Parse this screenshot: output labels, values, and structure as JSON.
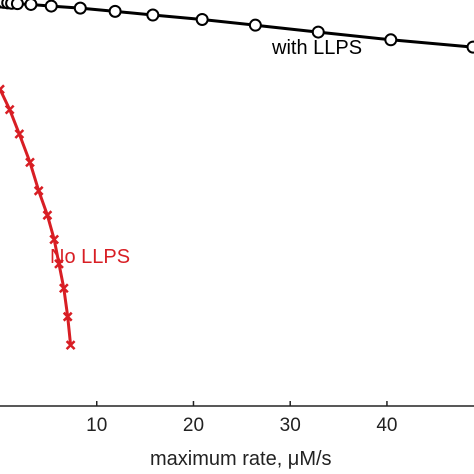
{
  "chart_data": {
    "type": "line",
    "xlabel": "maximum rate, μM/s",
    "x_ticks": [
      "10",
      "20",
      "30",
      "40"
    ],
    "x_tick_values": [
      10,
      20,
      30,
      40
    ],
    "xlim": [
      0,
      49
    ],
    "ylim": [
      0,
      1
    ],
    "grid": false,
    "legend": "none",
    "series": [
      {
        "name": "with LLPS",
        "color": "#000000",
        "marker": "circle",
        "x": [
          0.0,
          0.4,
          0.8,
          1.2,
          1.8,
          3.2,
          5.3,
          8.3,
          11.9,
          15.8,
          20.9,
          26.4,
          32.9,
          40.4,
          48.9
        ],
        "y": [
          0.995,
          0.994,
          0.993,
          0.992,
          0.991,
          0.989,
          0.985,
          0.98,
          0.972,
          0.963,
          0.952,
          0.938,
          0.921,
          0.902,
          0.884
        ]
      },
      {
        "name": "No LLPS",
        "color": "#d81e24",
        "marker": "x",
        "x": [
          0.0,
          1.0,
          2.0,
          3.1,
          4.0,
          4.9,
          5.6,
          6.1,
          6.6,
          7.0,
          7.3
        ],
        "y": [
          0.78,
          0.73,
          0.67,
          0.6,
          0.53,
          0.47,
          0.41,
          0.35,
          0.29,
          0.22,
          0.15
        ]
      }
    ]
  }
}
